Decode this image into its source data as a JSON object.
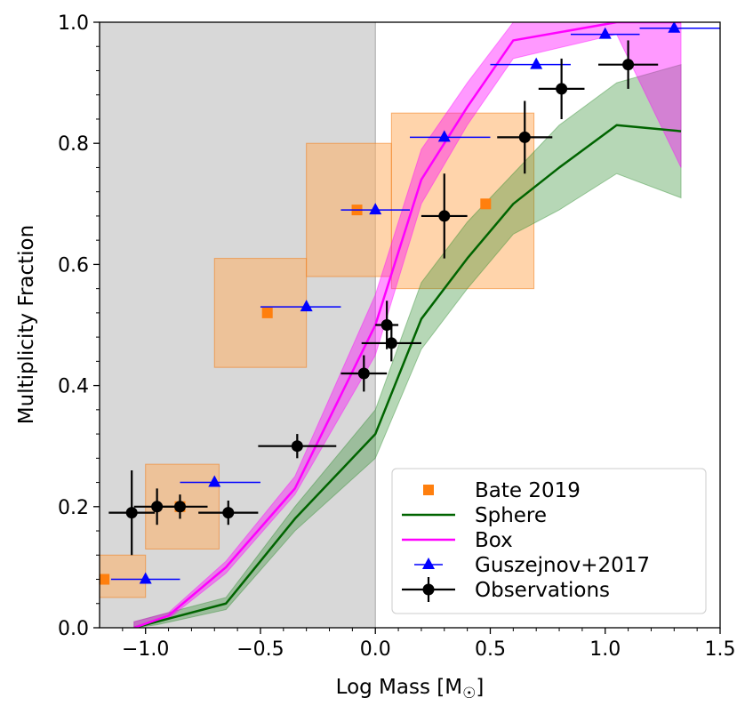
{
  "chart_data": {
    "type": "scatter",
    "xlabel": "Log Mass [M",
    "xlabel_sub": "☉",
    "xlabel_close": "]",
    "ylabel": "Multiplicity Fraction",
    "xlim": [
      -1.2,
      1.5
    ],
    "ylim": [
      0.0,
      1.0
    ],
    "xticks": [
      -1.0,
      -0.5,
      0.0,
      0.5,
      1.0,
      1.5
    ],
    "xtick_labels": [
      "−1.0",
      "−0.5",
      "0.0",
      "0.5",
      "1.0",
      "1.5"
    ],
    "yticks": [
      0.0,
      0.2,
      0.4,
      0.6,
      0.8,
      1.0
    ],
    "ytick_labels": [
      "0.0",
      "0.2",
      "0.4",
      "0.6",
      "0.8",
      "1.0"
    ],
    "legend_position": "lower-right",
    "shaded_region": {
      "x_from": -1.2,
      "x_to": 0.0,
      "color": "#d8d8d8"
    },
    "bate_boxes": [
      {
        "x0": -1.2,
        "x1": -1.0,
        "y0": 0.05,
        "y1": 0.12
      },
      {
        "x0": -1.0,
        "x1": -0.68,
        "y0": 0.13,
        "y1": 0.27
      },
      {
        "x0": -0.7,
        "x1": -0.3,
        "y0": 0.43,
        "y1": 0.61
      },
      {
        "x0": -0.3,
        "x1": 0.07,
        "y0": 0.58,
        "y1": 0.8
      },
      {
        "x0": 0.07,
        "x1": 0.69,
        "y0": 0.56,
        "y1": 0.85
      }
    ],
    "series": [
      {
        "name": "Bate 2019",
        "marker": "square",
        "color": "#ff7f0e",
        "x": [
          -1.18,
          -0.85,
          -0.47,
          -0.08,
          0.48
        ],
        "y": [
          0.08,
          0.2,
          0.52,
          0.69,
          0.7
        ]
      },
      {
        "name": "Sphere",
        "marker": "line",
        "color": "#006400",
        "x": [
          -1.05,
          -0.95,
          -0.65,
          -0.35,
          0.0,
          0.2,
          0.4,
          0.6,
          0.8,
          1.05,
          1.33
        ],
        "y": [
          0.0,
          0.01,
          0.04,
          0.18,
          0.32,
          0.51,
          0.61,
          0.7,
          0.76,
          0.83,
          0.82
        ],
        "band_low": [
          0.0,
          0.005,
          0.03,
          0.16,
          0.28,
          0.46,
          0.56,
          0.65,
          0.69,
          0.75,
          0.71
        ],
        "band_high": [
          0.01,
          0.02,
          0.05,
          0.2,
          0.36,
          0.57,
          0.67,
          0.75,
          0.83,
          0.9,
          0.93
        ],
        "band_color": "#2e8b2e"
      },
      {
        "name": "Box",
        "marker": "line",
        "color": "#ff00ff",
        "x": [
          -1.05,
          -0.9,
          -0.65,
          -0.35,
          0.0,
          0.2,
          0.4,
          0.6,
          1.05,
          1.33
        ],
        "y": [
          0.0,
          0.02,
          0.1,
          0.23,
          0.5,
          0.74,
          0.86,
          0.97,
          1.0,
          1.0
        ],
        "band_low": [
          0.0,
          0.015,
          0.09,
          0.22,
          0.45,
          0.7,
          0.83,
          0.94,
          0.98,
          0.76
        ],
        "band_high": [
          0.01,
          0.025,
          0.11,
          0.25,
          0.55,
          0.79,
          0.9,
          1.0,
          1.0,
          1.0
        ],
        "band_color": "#ff00ff"
      },
      {
        "name": "Guszejnov+2017",
        "marker": "triangle",
        "color": "#0000ff",
        "x": [
          -1.0,
          -0.7,
          -0.3,
          0.0,
          0.3,
          0.7,
          1.0,
          1.3
        ],
        "y": [
          0.08,
          0.24,
          0.53,
          0.69,
          0.81,
          0.93,
          0.98,
          0.99
        ],
        "xerr_low": [
          0.15,
          0.15,
          0.2,
          0.15,
          0.15,
          0.2,
          0.15,
          0.15
        ],
        "xerr_high": [
          0.15,
          0.2,
          0.15,
          0.15,
          0.2,
          0.15,
          0.15,
          0.2
        ]
      },
      {
        "name": "Observations",
        "marker": "circle",
        "color": "#000000",
        "x": [
          -1.06,
          -0.95,
          -0.85,
          -0.64,
          -0.34,
          -0.05,
          0.05,
          0.07,
          0.3,
          0.65,
          0.81,
          1.1
        ],
        "y": [
          0.19,
          0.2,
          0.2,
          0.19,
          0.3,
          0.42,
          0.5,
          0.47,
          0.68,
          0.81,
          0.89,
          0.93
        ],
        "xerr": [
          0.1,
          0.1,
          0.12,
          0.13,
          0.17,
          0.1,
          0.05,
          0.13,
          0.1,
          0.12,
          0.1,
          0.13
        ],
        "yerr": [
          0.07,
          0.03,
          0.02,
          0.02,
          0.02,
          0.03,
          0.04,
          0.03,
          0.07,
          0.06,
          0.05,
          0.04
        ]
      }
    ]
  }
}
